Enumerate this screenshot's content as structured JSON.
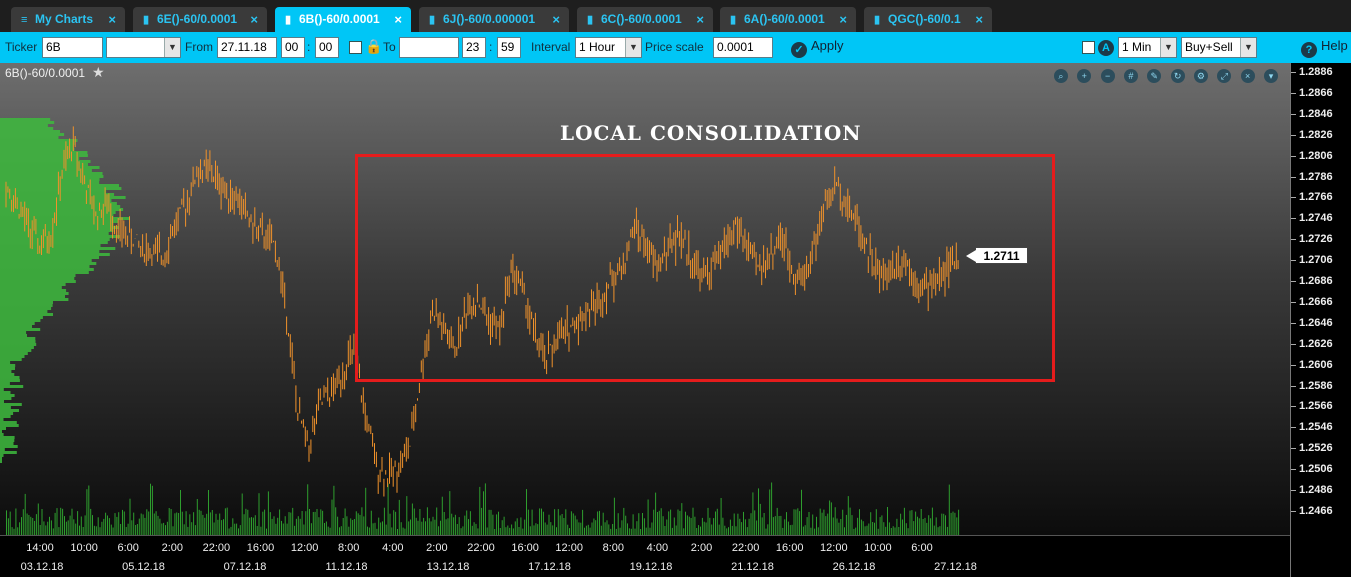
{
  "tabs": [
    {
      "label": "My Charts",
      "icon": "menu-icon",
      "active": false
    },
    {
      "label": "6E()-60/0.0001",
      "icon": "chart-icon",
      "active": false
    },
    {
      "label": "6B()-60/0.0001",
      "icon": "chart-icon",
      "active": true
    },
    {
      "label": "6J()-60/0.000001",
      "icon": "chart-icon",
      "active": false
    },
    {
      "label": "6C()-60/0.0001",
      "icon": "chart-icon",
      "active": false
    },
    {
      "label": "6A()-60/0.0001",
      "icon": "chart-icon",
      "active": false
    },
    {
      "label": "QGC()-60/0.1",
      "icon": "chart-icon",
      "active": false
    }
  ],
  "toolbar": {
    "ticker_label": "Ticker",
    "ticker_value": "6B",
    "ticker_select_value": "",
    "from_label": "From",
    "from_date": "27.11.18",
    "from_hour": "00",
    "from_minute": "00",
    "to_label": "To",
    "to_date": "",
    "to_hour": "23",
    "to_minute": "59",
    "time_separator": ":",
    "interval_label": "Interval",
    "interval_value": "1 Hour",
    "price_scale_label": "Price scale",
    "price_scale_value": "0.0001",
    "apply_label": "Apply",
    "timeframe_value": "1 Min",
    "side_value": "Buy+Sell",
    "help_label": "Help"
  },
  "chart": {
    "symbol_label": "6B()-60/0.0001",
    "annotation": "LOCAL CONSOLIDATION",
    "last_price": "1.2711",
    "box_color": "#e51c1c",
    "candle_color": "#f0922b",
    "volume_color": "#2e9e2e",
    "tools": [
      "zoom-fit-icon",
      "zoom-in-icon",
      "zoom-out-icon",
      "grid-icon",
      "pencil-icon",
      "refresh-icon",
      "gear-icon",
      "expand-icon",
      "close-icon",
      "chevron-down-icon"
    ]
  },
  "chart_data": {
    "type": "candlestick",
    "price_ticks": [
      "1.2886",
      "1.2866",
      "1.2846",
      "1.2826",
      "1.2806",
      "1.2786",
      "1.2766",
      "1.2746",
      "1.2726",
      "1.2706",
      "1.2686",
      "1.2666",
      "1.2646",
      "1.2626",
      "1.2606",
      "1.2586",
      "1.2566",
      "1.2546",
      "1.2526",
      "1.2506",
      "1.2486",
      "1.2466"
    ],
    "time_ticks": [
      "14:00",
      "10:00",
      "6:00",
      "2:00",
      "22:00",
      "16:00",
      "12:00",
      "8:00",
      "4:00",
      "2:00",
      "22:00",
      "16:00",
      "12:00",
      "8:00",
      "4:00",
      "2:00",
      "22:00",
      "16:00",
      "12:00",
      "10:00",
      "6:00"
    ],
    "date_ticks": [
      "03.12.18",
      "05.12.18",
      "07.12.18",
      "11.12.18",
      "13.12.18",
      "17.12.18",
      "19.12.18",
      "21.12.18",
      "26.12.18",
      "27.12.18"
    ],
    "ylim": [
      1.2466,
      1.2886
    ],
    "consolidation_range": [
      1.259,
      1.28
    ],
    "price_path": [
      1.278,
      1.276,
      1.274,
      1.272,
      1.273,
      1.279,
      1.282,
      1.278,
      1.275,
      1.276,
      1.2735,
      1.273,
      1.272,
      1.2715,
      1.271,
      1.274,
      1.276,
      1.279,
      1.2795,
      1.278,
      1.277,
      1.276,
      1.274,
      1.273,
      1.272,
      1.266,
      1.256,
      1.253,
      1.257,
      1.258,
      1.26,
      1.262,
      1.256,
      1.251,
      1.25,
      1.251,
      1.253,
      1.26,
      1.266,
      1.264,
      1.262,
      1.266,
      1.267,
      1.265,
      1.264,
      1.27,
      1.268,
      1.264,
      1.261,
      1.263,
      1.264,
      1.265,
      1.266,
      1.267,
      1.269,
      1.27,
      1.274,
      1.272,
      1.27,
      1.272,
      1.273,
      1.271,
      1.269,
      1.27,
      1.272,
      1.274,
      1.272,
      1.27,
      1.271,
      1.273,
      1.27,
      1.269,
      1.272,
      1.276,
      1.278,
      1.276,
      1.274,
      1.271,
      1.269,
      1.27,
      1.271,
      1.269,
      1.268,
      1.269,
      1.27,
      1.2711
    ]
  }
}
